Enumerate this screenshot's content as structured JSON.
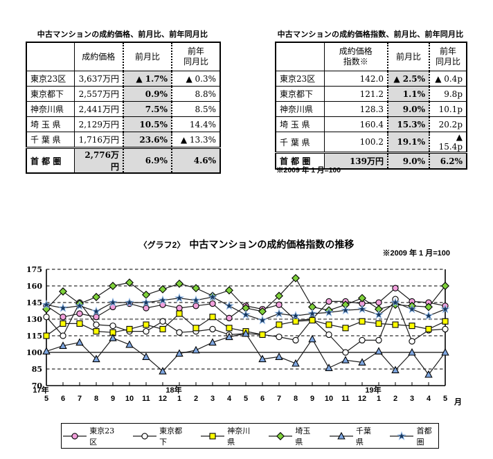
{
  "tables": [
    {
      "title": "中古マンションの成約価格、前月比、前年同月比",
      "columns": [
        "",
        "成約価格",
        "前月比",
        "前年\n同月比"
      ],
      "rows": [
        [
          "東京23区",
          "3,637万円",
          "▲ 1.7%",
          "▲ 0.3%"
        ],
        [
          "東京都下",
          "2,557万円",
          "0.9%",
          "8.8%"
        ],
        [
          "神奈川県",
          "2,441万円",
          "7.5%",
          "8.5%"
        ],
        [
          "埼 玉 県",
          "2,129万円",
          "10.5%",
          "14.4%"
        ],
        [
          "千 葉 県",
          "1,716万円",
          "23.6%",
          "▲ 13.3%"
        ],
        [
          "首 都 圏",
          "2,776万円",
          "6.9%",
          "4.6%"
        ]
      ]
    },
    {
      "title": "中古マンションの成約価格指数、前月比、前年同月比",
      "columns": [
        "",
        "成約価格\n指数※",
        "前月比",
        "前年\n同月比"
      ],
      "rows": [
        [
          "東京23区",
          "142.0",
          "▲ 2.5%",
          "▲ 0.4p"
        ],
        [
          "東京都下",
          "121.2",
          "1.1%",
          "9.8p"
        ],
        [
          "神奈川県",
          "128.3",
          "9.0%",
          "10.1p"
        ],
        [
          "埼 玉 県",
          "160.4",
          "15.3%",
          "20.2p"
        ],
        [
          "千 葉 県",
          "100.2",
          "19.1%",
          "▲ 15.4p"
        ],
        [
          "首 都 圏",
          "139万円",
          "9.0%",
          "6.2%"
        ]
      ],
      "footnote": "※2009 年 1 月=100"
    }
  ],
  "chart": {
    "caption_prefix": "〈グラフ2〉",
    "title": "中古マンションの成約価格指数の推移",
    "note": "※2009 年 1 月=100",
    "x_unit": "月"
  },
  "chart_data": {
    "type": "line",
    "title": "中古マンションの成約価格指数の推移",
    "note": "※2009 年 1 月=100",
    "ylim": [
      70,
      175
    ],
    "yticks": [
      70,
      85,
      100,
      115,
      130,
      145,
      160,
      175
    ],
    "grid": "dashed-horizontal",
    "legend_position": "bottom",
    "x_labels": [
      "5",
      "6",
      "7",
      "8",
      "9",
      "10",
      "11",
      "12",
      "1",
      "2",
      "3",
      "4",
      "5",
      "6",
      "7",
      "8",
      "9",
      "10",
      "11",
      "12",
      "1",
      "2",
      "3",
      "4",
      "5"
    ],
    "year_labels": [
      {
        "label": "17年",
        "index": 0
      },
      {
        "label": "18年",
        "index": 8
      },
      {
        "label": "19年",
        "index": 20
      }
    ],
    "series": [
      {
        "name": "東京23区",
        "marker": "circle",
        "color": "#F2A0DC",
        "values": [
          142,
          132,
          135,
          132,
          141,
          144,
          140,
          143,
          140,
          142,
          144,
          131,
          142,
          139,
          143,
          129,
          130,
          146,
          146,
          144,
          145,
          158,
          146,
          145,
          142
        ]
      },
      {
        "name": "東京都下",
        "marker": "circle",
        "color": "#FFFFFF",
        "values": [
          132,
          115,
          145,
          125,
          124,
          119,
          119,
          128,
          118,
          119,
          121,
          116,
          117,
          116,
          114,
          111,
          130,
          116,
          100,
          111,
          111,
          148,
          110,
          120,
          121
        ]
      },
      {
        "name": "神奈川県",
        "marker": "square",
        "color": "#FFFF00",
        "values": [
          115,
          126,
          126,
          119,
          118,
          121,
          125,
          121,
          135,
          122,
          132,
          122,
          119,
          116,
          125,
          128,
          129,
          125,
          122,
          128,
          126,
          125,
          124,
          121,
          128
        ]
      },
      {
        "name": "埼玉県",
        "marker": "diamond",
        "color": "#7FD13B",
        "values": [
          139,
          155,
          144,
          150,
          160,
          163,
          152,
          157,
          162,
          158,
          151,
          156,
          140,
          137,
          151,
          167,
          141,
          138,
          143,
          149,
          139,
          143,
          142,
          141,
          160
        ]
      },
      {
        "name": "千葉県",
        "marker": "triangle",
        "color": "#7EA6E0",
        "values": [
          101,
          106,
          109,
          94,
          113,
          107,
          96,
          83,
          99,
          102,
          109,
          114,
          117,
          94,
          96,
          90,
          112,
          86,
          93,
          91,
          101,
          84,
          100,
          80,
          100
        ]
      },
      {
        "name": "首都圏",
        "marker": "star",
        "color": "#17375E",
        "values": [
          143,
          140,
          142,
          137,
          145,
          145,
          145,
          147,
          149,
          147,
          150,
          142,
          134,
          129,
          135,
          133,
          135,
          136,
          138,
          139,
          134,
          145,
          139,
          133,
          139
        ]
      }
    ]
  }
}
